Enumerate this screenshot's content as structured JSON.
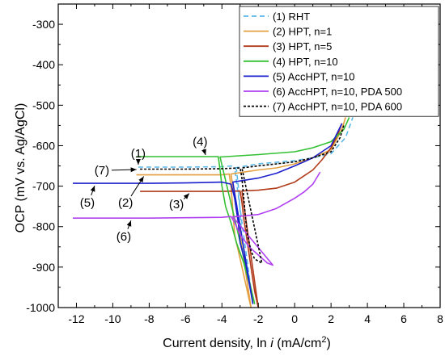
{
  "chart_data": {
    "type": "line",
    "xlabel_prefix": "Current density, ln ",
    "xlabel_var": "i",
    "xlabel_unit": " (mA/cm",
    "xlabel_sup": "2",
    "xlabel_close": ")",
    "ylabel": "OCP (mV vs. Ag/AgCl)",
    "xlim": [
      -13,
      8
    ],
    "ylim": [
      -1000,
      -250
    ],
    "xticks": [
      -12,
      -10,
      -8,
      -6,
      -4,
      -2,
      0,
      2,
      4,
      6,
      8
    ],
    "yticks": [
      -1000,
      -900,
      -800,
      -700,
      -600,
      -500,
      -400,
      -300
    ],
    "grid": false,
    "legend_position": "top-right",
    "series": [
      {
        "name": "(1) RHT",
        "color": "#5bb8e8",
        "dash": "6,4",
        "points": [
          [
            -8.6,
            -653
          ],
          [
            -6,
            -653
          ],
          [
            -4,
            -652
          ],
          [
            -3.4,
            -650
          ],
          [
            -3.2,
            -660
          ],
          [
            -3.1,
            -700
          ],
          [
            -3.0,
            -760
          ],
          [
            -2.95,
            -800
          ],
          [
            -2.9,
            -840
          ],
          [
            -2.7,
            -880
          ],
          [
            -2.5,
            -930
          ],
          [
            -2.3,
            -990
          ],
          [
            -3.3,
            -655
          ],
          [
            -2,
            -645
          ],
          [
            0,
            -637
          ],
          [
            1,
            -630
          ],
          [
            2,
            -620
          ],
          [
            2.8,
            -580
          ],
          [
            3.2,
            -530
          ]
        ]
      },
      {
        "name": "(2) HPT, n=1",
        "color": "#e4a040",
        "dash": "",
        "points": [
          [
            -8.7,
            -672
          ],
          [
            -6,
            -672
          ],
          [
            -4,
            -672
          ],
          [
            -3.6,
            -670
          ],
          [
            -3.5,
            -700
          ],
          [
            -3.4,
            -760
          ],
          [
            -3.3,
            -820
          ],
          [
            -3.0,
            -880
          ],
          [
            -2.7,
            -940
          ],
          [
            -2.4,
            -1000
          ],
          [
            -3.5,
            -670
          ],
          [
            -2,
            -660
          ],
          [
            -1,
            -655
          ],
          [
            0,
            -645
          ],
          [
            1,
            -630
          ],
          [
            2,
            -610
          ],
          [
            2.6,
            -560
          ],
          [
            2.8,
            -530
          ]
        ]
      },
      {
        "name": "(3) HPT, n=5",
        "color": "#b03a1a",
        "dash": "",
        "points": [
          [
            -8.5,
            -713
          ],
          [
            -6,
            -713
          ],
          [
            -4,
            -713
          ],
          [
            -3,
            -712
          ],
          [
            -2.9,
            -740
          ],
          [
            -2.8,
            -780
          ],
          [
            -2.6,
            -840
          ],
          [
            -2.4,
            -900
          ],
          [
            -2.2,
            -960
          ],
          [
            -2.0,
            -1000
          ],
          [
            -2.9,
            -712
          ],
          [
            -2,
            -710
          ],
          [
            -1,
            -705
          ],
          [
            0,
            -690
          ],
          [
            0.5,
            -675
          ],
          [
            1,
            -660
          ],
          [
            1.5,
            -635
          ],
          [
            2,
            -605
          ],
          [
            2.4,
            -570
          ],
          [
            2.6,
            -545
          ]
        ]
      },
      {
        "name": "(4) HPT, n=10",
        "color": "#33c033",
        "dash": "",
        "points": [
          [
            -8.7,
            -627
          ],
          [
            -6,
            -627
          ],
          [
            -4.2,
            -627
          ],
          [
            -4.1,
            -660
          ],
          [
            -4.0,
            -700
          ],
          [
            -3.8,
            -750
          ],
          [
            -3.5,
            -790
          ],
          [
            -3.2,
            -840
          ],
          [
            -2.8,
            -890
          ],
          [
            -2.5,
            -940
          ],
          [
            -2.2,
            -990
          ],
          [
            -4.1,
            -628
          ],
          [
            -2,
            -622
          ],
          [
            0,
            -615
          ],
          [
            1,
            -605
          ],
          [
            2,
            -590
          ],
          [
            2.7,
            -560
          ],
          [
            3,
            -530
          ]
        ]
      },
      {
        "name": "(5) AccHPT, n=10",
        "color": "#1c20cc",
        "dash": "",
        "points": [
          [
            -12.2,
            -693
          ],
          [
            -10,
            -693
          ],
          [
            -8,
            -693
          ],
          [
            -6,
            -692
          ],
          [
            -4,
            -690
          ],
          [
            -3.5,
            -695
          ],
          [
            -3.3,
            -730
          ],
          [
            -3.1,
            -790
          ],
          [
            -3.0,
            -840
          ],
          [
            -2.7,
            -890
          ],
          [
            -2.5,
            -940
          ],
          [
            -2.3,
            -990
          ],
          [
            -3.4,
            -690
          ],
          [
            -2,
            -680
          ],
          [
            -1,
            -668
          ],
          [
            0,
            -650
          ],
          [
            1,
            -630
          ],
          [
            1.5,
            -615
          ],
          [
            2,
            -600
          ],
          [
            2.6,
            -545
          ]
        ]
      },
      {
        "name": "(6) AccHPT, n=10, PDA 500",
        "color": "#b040f0",
        "dash": "",
        "points": [
          [
            -12.2,
            -779
          ],
          [
            -10,
            -779
          ],
          [
            -8,
            -779
          ],
          [
            -6,
            -778
          ],
          [
            -4,
            -777
          ],
          [
            -3.5,
            -775
          ],
          [
            -3.3,
            -790
          ],
          [
            -3.0,
            -820
          ],
          [
            -2.5,
            -850
          ],
          [
            -2,
            -870
          ],
          [
            -1.5,
            -890
          ],
          [
            -1.2,
            -895
          ],
          [
            -3.4,
            -776
          ],
          [
            -2,
            -770
          ],
          [
            -1,
            -755
          ],
          [
            0,
            -730
          ],
          [
            0.5,
            -715
          ],
          [
            1,
            -695
          ],
          [
            1.4,
            -665
          ]
        ]
      },
      {
        "name": "(7) AccHPT, n=10, PDA 600",
        "color": "#000000",
        "dash": "3,2",
        "points": [
          [
            -8.5,
            -658
          ],
          [
            -6,
            -658
          ],
          [
            -4,
            -657
          ],
          [
            -3,
            -655
          ],
          [
            -2.9,
            -680
          ],
          [
            -2.8,
            -730
          ],
          [
            -2.7,
            -780
          ],
          [
            -2.6,
            -820
          ],
          [
            -2.4,
            -860
          ],
          [
            -2.2,
            -880
          ],
          [
            -1.8,
            -890
          ],
          [
            -2.9,
            -655
          ],
          [
            -2,
            -650
          ],
          [
            0,
            -640
          ],
          [
            1,
            -630
          ],
          [
            2,
            -615
          ],
          [
            2.5,
            -580
          ],
          [
            2.7,
            -550
          ]
        ]
      }
    ],
    "annotations": [
      {
        "text": "(1)",
        "x": -8.6,
        "y": -619,
        "tx": -8.6,
        "ty": -647
      },
      {
        "text": "(2)",
        "x": -9.3,
        "y": -741,
        "tx": -8.3,
        "ty": -676
      },
      {
        "text": "(3)",
        "x": -6.5,
        "y": -745,
        "tx": -5.8,
        "ty": -718
      },
      {
        "text": "(4)",
        "x": -5.2,
        "y": -590,
        "tx": -4.9,
        "ty": -623
      },
      {
        "text": "(5)",
        "x": -11.4,
        "y": -741,
        "tx": -11.0,
        "ty": -699
      },
      {
        "text": "(6)",
        "x": -9.4,
        "y": -824,
        "tx": -9.0,
        "ty": -785
      },
      {
        "text": "(7)",
        "x": -10.6,
        "y": -661,
        "tx": -8.7,
        "ty": -659
      }
    ]
  }
}
